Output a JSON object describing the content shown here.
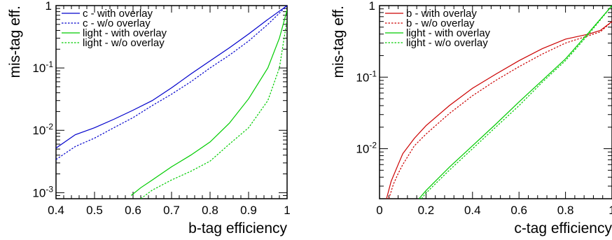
{
  "chart_data": [
    {
      "type": "line",
      "xlabel": "b-tag efficiency",
      "ylabel": "mis-tag eff.",
      "xlim": [
        0.4,
        1.0
      ],
      "ylim": [
        0.0008,
        1.0
      ],
      "yscale": "log",
      "x_ticks": [
        "0.4",
        "0.5",
        "0.6",
        "0.7",
        "0.8",
        "0.9",
        "1"
      ],
      "x_tick_values": [
        0.4,
        0.5,
        0.6,
        0.7,
        0.8,
        0.9,
        1.0
      ],
      "y_tick_labels": [
        {
          "base": "10",
          "exp": "-3",
          "value": 0.001
        },
        {
          "base": "10",
          "exp": "-2",
          "value": 0.01
        },
        {
          "base": "10",
          "exp": "-1",
          "value": 0.1
        },
        {
          "base": "1",
          "exp": "",
          "value": 1.0
        }
      ],
      "legend_position": "top-left",
      "series": [
        {
          "name": "c - with overlay",
          "color": "#0000cc",
          "style": "solid",
          "x": [
            0.4,
            0.45,
            0.5,
            0.55,
            0.6,
            0.65,
            0.7,
            0.75,
            0.8,
            0.85,
            0.9,
            0.95,
            1.0
          ],
          "y": [
            0.0052,
            0.0085,
            0.011,
            0.015,
            0.021,
            0.03,
            0.048,
            0.08,
            0.13,
            0.21,
            0.35,
            0.6,
            1.0
          ]
        },
        {
          "name": "c - w/o overlay",
          "color": "#0000cc",
          "style": "dashed",
          "x": [
            0.4,
            0.45,
            0.5,
            0.55,
            0.6,
            0.65,
            0.7,
            0.75,
            0.8,
            0.85,
            0.9,
            0.95,
            1.0
          ],
          "y": [
            0.0034,
            0.0055,
            0.0075,
            0.011,
            0.016,
            0.025,
            0.038,
            0.06,
            0.1,
            0.16,
            0.27,
            0.5,
            1.0
          ]
        },
        {
          "name": "light - with overlay",
          "color": "#00cc00",
          "style": "solid",
          "x": [
            0.595,
            0.62,
            0.65,
            0.7,
            0.75,
            0.8,
            0.85,
            0.9,
            0.95,
            0.98,
            1.0
          ],
          "y": [
            0.0009,
            0.0012,
            0.0016,
            0.0026,
            0.004,
            0.0065,
            0.013,
            0.032,
            0.1,
            0.3,
            0.85
          ]
        },
        {
          "name": "light - w/o overlay",
          "color": "#00cc00",
          "style": "dashed",
          "x": [
            0.62,
            0.65,
            0.7,
            0.75,
            0.8,
            0.85,
            0.9,
            0.95,
            0.98,
            1.0
          ],
          "y": [
            0.0008,
            0.0011,
            0.0016,
            0.0022,
            0.0032,
            0.006,
            0.011,
            0.03,
            0.1,
            0.6
          ]
        }
      ]
    },
    {
      "type": "line",
      "xlabel": "c-tag efficiency",
      "ylabel": "mis-tag eff.",
      "xlim": [
        0.0,
        1.0
      ],
      "ylim": [
        0.002,
        1.0
      ],
      "yscale": "log",
      "x_ticks": [
        "0",
        "0.2",
        "0.4",
        "0.6",
        "0.8",
        "1"
      ],
      "x_tick_values": [
        0.0,
        0.2,
        0.4,
        0.6,
        0.8,
        1.0
      ],
      "y_tick_labels": [
        {
          "base": "10",
          "exp": "-2",
          "value": 0.01
        },
        {
          "base": "10",
          "exp": "-1",
          "value": 0.1
        },
        {
          "base": "1",
          "exp": "",
          "value": 1.0
        }
      ],
      "legend_position": "top-left",
      "series": [
        {
          "name": "b - with overlay",
          "color": "#cc0000",
          "style": "solid",
          "x": [
            0.03,
            0.05,
            0.08,
            0.1,
            0.15,
            0.2,
            0.3,
            0.4,
            0.5,
            0.6,
            0.7,
            0.8,
            0.9,
            0.95,
            1.0
          ],
          "y": [
            0.002,
            0.0035,
            0.006,
            0.0085,
            0.014,
            0.021,
            0.04,
            0.07,
            0.11,
            0.17,
            0.25,
            0.34,
            0.4,
            0.45,
            0.6
          ]
        },
        {
          "name": "b - w/o overlay",
          "color": "#cc0000",
          "style": "dashed",
          "x": [
            0.04,
            0.06,
            0.08,
            0.1,
            0.15,
            0.2,
            0.3,
            0.4,
            0.5,
            0.6,
            0.7,
            0.8,
            0.9,
            0.95,
            1.0
          ],
          "y": [
            0.002,
            0.0032,
            0.0045,
            0.006,
            0.011,
            0.016,
            0.031,
            0.055,
            0.09,
            0.14,
            0.21,
            0.3,
            0.38,
            0.43,
            0.6
          ]
        },
        {
          "name": "light - with overlay",
          "color": "#00cc00",
          "style": "solid",
          "x": [
            0.17,
            0.2,
            0.3,
            0.4,
            0.5,
            0.6,
            0.7,
            0.8,
            0.9,
            1.0
          ],
          "y": [
            0.002,
            0.0026,
            0.0055,
            0.011,
            0.022,
            0.045,
            0.09,
            0.18,
            0.42,
            1.0
          ]
        },
        {
          "name": "light - w/o overlay",
          "color": "#00cc00",
          "style": "dashed",
          "x": [
            0.18,
            0.2,
            0.3,
            0.4,
            0.5,
            0.6,
            0.7,
            0.8,
            0.9,
            1.0
          ],
          "y": [
            0.002,
            0.0024,
            0.005,
            0.01,
            0.02,
            0.04,
            0.085,
            0.17,
            0.4,
            1.0
          ]
        }
      ]
    }
  ]
}
